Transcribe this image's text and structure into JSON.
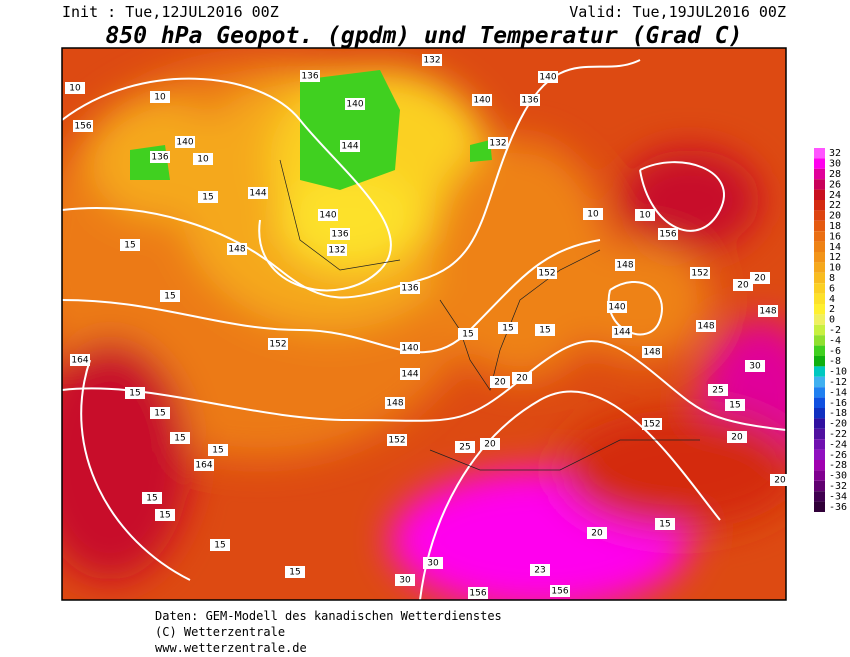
{
  "header": {
    "init": "Init : Tue,12JUL2016 00Z",
    "valid": "Valid: Tue,19JUL2016 00Z",
    "title": "850 hPa Geopot. (gpdm) und Temperatur (Grad C)"
  },
  "colorbar": {
    "levels": [
      32,
      30,
      28,
      26,
      24,
      22,
      20,
      18,
      16,
      14,
      12,
      10,
      8,
      6,
      4,
      2,
      0,
      -2,
      -4,
      -6,
      -8,
      -10,
      -12,
      -14,
      -16,
      -18,
      -20,
      -22,
      -24,
      -26,
      -28,
      -30,
      -32,
      -34,
      -36
    ],
    "colors": [
      "#ff55ff",
      "#ff00ee",
      "#e0009a",
      "#c8005a",
      "#c81020",
      "#d42a10",
      "#dd4410",
      "#e45a10",
      "#ea6e12",
      "#ee8214",
      "#f29418",
      "#f5a81c",
      "#f8bc20",
      "#fbd024",
      "#fde12a",
      "#fff030",
      "#f0f060",
      "#c8f040",
      "#90e030",
      "#40d020",
      "#10b010",
      "#00c8c0",
      "#40b0f0",
      "#2080f0",
      "#1050e0",
      "#1030c0",
      "#3010a0",
      "#5010a0",
      "#7010b0",
      "#9010c0",
      "#a000b0",
      "#800090",
      "#600070",
      "#400050",
      "#300038"
    ]
  },
  "contour_labels": [
    10,
    156,
    10,
    140,
    136,
    10,
    15,
    144,
    148,
    136,
    140,
    144,
    140,
    136,
    132,
    136,
    152,
    140,
    144,
    148,
    152,
    132,
    140,
    136,
    140,
    132,
    152,
    148,
    140,
    144,
    148,
    152,
    152,
    148,
    148,
    156,
    164,
    164,
    156,
    156,
    15,
    15,
    15,
    15,
    15,
    15,
    15,
    20,
    15,
    15,
    25,
    20,
    20,
    15,
    25,
    20,
    15,
    30,
    20,
    20,
    10,
    10,
    20,
    30,
    30,
    23,
    15,
    15,
    15,
    15,
    20
  ],
  "footer": [
    "Daten: GEM-Modell des kanadischen Wetterdienstes",
    "(C) Wetterzentrale",
    "www.wetterzentrale.de"
  ]
}
